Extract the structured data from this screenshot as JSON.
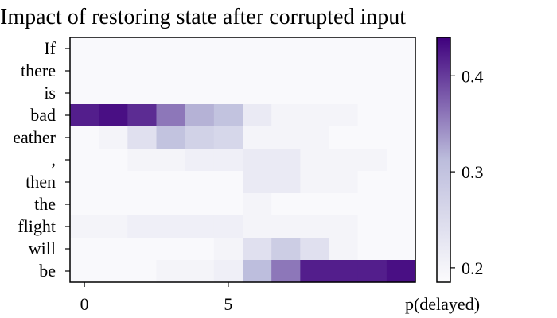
{
  "chart_data": {
    "type": "heatmap",
    "title": "Impact of restoring state after corrupted input",
    "tokens": [
      "If",
      "there",
      "is",
      "bad",
      "eather",
      ",",
      "then",
      "the",
      "flight",
      "will",
      "be"
    ],
    "x_ticks": [
      {
        "value": 0,
        "label": "0"
      },
      {
        "value": 5,
        "label": "5"
      }
    ],
    "x_end_label": "p(delayed)",
    "n_cols": 12,
    "colorbar": {
      "min": 0.185,
      "max": 0.44,
      "ticks": [
        {
          "value": 0.2,
          "label": "0.2"
        },
        {
          "value": 0.3,
          "label": "0.3"
        },
        {
          "value": 0.4,
          "label": "0.4"
        }
      ]
    },
    "values": [
      [
        0.19,
        0.19,
        0.19,
        0.19,
        0.19,
        0.19,
        0.19,
        0.19,
        0.19,
        0.19,
        0.19,
        0.19
      ],
      [
        0.19,
        0.19,
        0.19,
        0.19,
        0.19,
        0.19,
        0.19,
        0.19,
        0.19,
        0.19,
        0.19,
        0.19
      ],
      [
        0.19,
        0.19,
        0.19,
        0.19,
        0.19,
        0.19,
        0.19,
        0.19,
        0.19,
        0.19,
        0.19,
        0.19
      ],
      [
        0.42,
        0.43,
        0.41,
        0.36,
        0.32,
        0.3,
        0.22,
        0.2,
        0.2,
        0.2,
        0.19,
        0.19
      ],
      [
        0.19,
        0.2,
        0.24,
        0.3,
        0.27,
        0.26,
        0.2,
        0.2,
        0.2,
        0.19,
        0.19,
        0.19
      ],
      [
        0.19,
        0.19,
        0.2,
        0.2,
        0.21,
        0.21,
        0.22,
        0.22,
        0.2,
        0.2,
        0.2,
        0.19
      ],
      [
        0.19,
        0.19,
        0.19,
        0.19,
        0.19,
        0.19,
        0.22,
        0.22,
        0.2,
        0.2,
        0.19,
        0.19
      ],
      [
        0.19,
        0.19,
        0.19,
        0.19,
        0.19,
        0.19,
        0.2,
        0.19,
        0.19,
        0.19,
        0.19,
        0.19
      ],
      [
        0.2,
        0.2,
        0.21,
        0.21,
        0.21,
        0.21,
        0.2,
        0.2,
        0.2,
        0.2,
        0.19,
        0.19
      ],
      [
        0.19,
        0.19,
        0.19,
        0.19,
        0.19,
        0.2,
        0.24,
        0.28,
        0.24,
        0.2,
        0.19,
        0.19
      ],
      [
        0.19,
        0.19,
        0.19,
        0.2,
        0.2,
        0.21,
        0.31,
        0.36,
        0.42,
        0.42,
        0.42,
        0.43
      ]
    ],
    "colors": {
      "low": "#fcfbfd",
      "mid": "#bcbddc",
      "high": "#3f007d"
    }
  }
}
